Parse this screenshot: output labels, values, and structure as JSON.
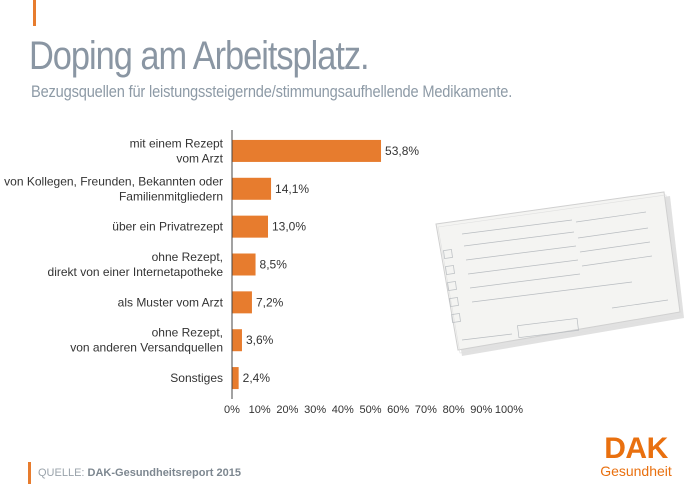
{
  "header": {
    "title": "Doping am Arbeitsplatz.",
    "subtitle": "Bezugsquellen für leistungssteigernde/stimmungsaufhellende Medikamente."
  },
  "footer": {
    "source_label": "QUELLE:",
    "source_value": "DAK-Gesundheitsreport 2015"
  },
  "logo": {
    "brand": "DAK",
    "sub": "Gesundheit"
  },
  "colors": {
    "bar": "#e77c2e",
    "accent": "#e77c2e",
    "logo": "#e9700f",
    "title": "#8a96a3"
  },
  "chart_data": {
    "type": "bar",
    "orientation": "horizontal",
    "categories": [
      [
        "mit einem Rezept",
        "vom Arzt"
      ],
      [
        "von Kollegen, Freunden, Bekannten oder",
        "Familienmitgliedern"
      ],
      [
        "über ein Privatrezept"
      ],
      [
        "ohne Rezept,",
        "direkt von einer Internetapotheke"
      ],
      [
        "als Muster vom Arzt"
      ],
      [
        "ohne Rezept,",
        "von anderen Versandquellen"
      ],
      [
        "Sonstiges"
      ]
    ],
    "values": [
      53.8,
      14.1,
      13.0,
      8.5,
      7.2,
      3.6,
      2.4
    ],
    "value_labels": [
      "53,8%",
      "14,1%",
      "13,0%",
      "8,5%",
      "7,2%",
      "3,6%",
      "2,4%"
    ],
    "xlim": [
      0,
      100
    ],
    "xticks": [
      0,
      10,
      20,
      30,
      40,
      50,
      60,
      70,
      80,
      90,
      100
    ],
    "xtick_labels": [
      "0%",
      "10%",
      "20%",
      "30%",
      "40%",
      "50%",
      "60%",
      "70%",
      "80%",
      "90%",
      "100%"
    ],
    "grid": false,
    "legend": "none"
  }
}
